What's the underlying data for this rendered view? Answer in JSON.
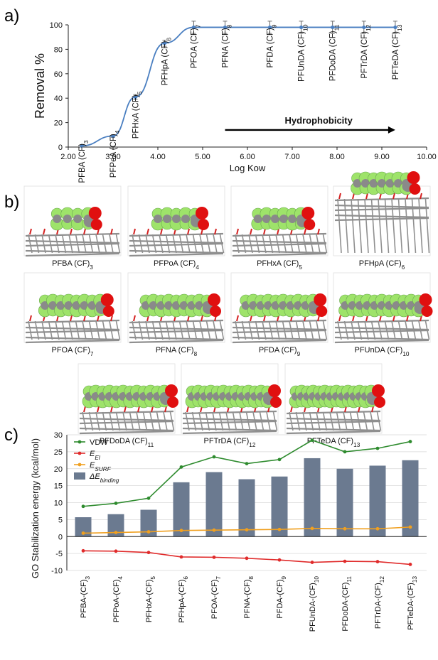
{
  "panels": {
    "a": "a)",
    "b": "b)",
    "c": "c)"
  },
  "chart_data": [
    {
      "type": "line",
      "xlabel": "Log Kow",
      "ylabel": "Removal %",
      "xlim": [
        2.0,
        10.0
      ],
      "ylim": [
        0,
        100
      ],
      "xticks": [
        "2.00",
        "3.00",
        "4.00",
        "5.00",
        "6.00",
        "7.00",
        "8.00",
        "9.00",
        "10.00"
      ],
      "yticks": [
        "0",
        "20",
        "40",
        "60",
        "80",
        "100"
      ],
      "series": [
        {
          "color": "#4a7fc1",
          "x": [
            2.3,
            3.0,
            3.5,
            4.15,
            4.8,
            5.5,
            6.5,
            7.2,
            7.9,
            8.6,
            9.3
          ],
          "y": [
            1,
            9,
            41,
            85,
            98,
            98,
            98,
            98,
            98,
            98,
            98
          ],
          "yerr": [
            0.8,
            1.0,
            2.0,
            2.5,
            5,
            5,
            5,
            5,
            5,
            5,
            5
          ]
        }
      ],
      "point_labels": [
        {
          "base": "PFBA (CF)",
          "sub": "3",
          "x": 2.3,
          "y": 1
        },
        {
          "base": "PFPeA (CF)",
          "sub": "4",
          "x": 3.0,
          "y": 9
        },
        {
          "base": "PFHxA (CF)",
          "sub": "5",
          "x": 3.5,
          "y": 41
        },
        {
          "base": "PFHpA (CF)",
          "sub": "6",
          "x": 4.15,
          "y": 85
        },
        {
          "base": "PFOA (CF)",
          "sub": "7",
          "x": 4.8,
          "y": 98
        },
        {
          "base": "PFNA (CF)",
          "sub": "8",
          "x": 5.5,
          "y": 98
        },
        {
          "base": "PFDA (CF)",
          "sub": "9",
          "x": 6.5,
          "y": 98
        },
        {
          "base": "PFUnDA (CF)",
          "sub": "10",
          "x": 7.2,
          "y": 98
        },
        {
          "base": "PFDoDA (CF)",
          "sub": "11",
          "x": 7.9,
          "y": 98
        },
        {
          "base": "PFTrDA (CF)",
          "sub": "12",
          "x": 8.6,
          "y": 98
        },
        {
          "base": "PFTeDA (CF)",
          "sub": "13",
          "x": 9.3,
          "y": 98
        }
      ],
      "annotation": {
        "text": "Hydrophobicity",
        "arrow_from_x": 5.5,
        "arrow_to_x": 9.3,
        "y": 14
      }
    },
    {
      "type": "bar",
      "ylabel": "GO Stabilization energy (kcal/mol)",
      "ylim": [
        -10,
        30
      ],
      "yticks": [
        "-10",
        "-5",
        "0",
        "5",
        "10",
        "15",
        "20",
        "25",
        "30"
      ],
      "categories": [
        {
          "base": "PFBA-(CF)",
          "sub": "3"
        },
        {
          "base": "PFPoA-(CF)",
          "sub": "4"
        },
        {
          "base": "PFHxA-(CF)",
          "sub": "5"
        },
        {
          "base": "PFHpA-(CF)",
          "sub": "6"
        },
        {
          "base": "PFOA-(CF)",
          "sub": "7"
        },
        {
          "base": "PFNA-(CF)",
          "sub": "8"
        },
        {
          "base": "PFDA-(CF)",
          "sub": "9"
        },
        {
          "base": "PFUnDA-(CF)",
          "sub": "10"
        },
        {
          "base": "PFDoDA-(CF)",
          "sub": "11"
        },
        {
          "base": "PFTrDA-(CF)",
          "sub": "12"
        },
        {
          "base": "PFTeDA-(CF)",
          "sub": "13"
        }
      ],
      "series": [
        {
          "name": "VDW",
          "kind": "line",
          "color": "#2e8b2e",
          "values": [
            8.9,
            9.8,
            11.3,
            20.5,
            23.5,
            21.5,
            22.7,
            28.4,
            25.0,
            26.0,
            28.0
          ]
        },
        {
          "name": "E",
          "name_sub": "El",
          "kind": "line",
          "color": "#e02b2b",
          "values": [
            -4.2,
            -4.3,
            -4.7,
            -6.0,
            -6.1,
            -6.4,
            -6.9,
            -7.6,
            -7.3,
            -7.4,
            -8.2
          ]
        },
        {
          "name": "E",
          "name_sub": "SURF",
          "kind": "line",
          "color": "#f0a020",
          "values": [
            1.0,
            1.2,
            1.4,
            1.8,
            1.9,
            2.0,
            2.1,
            2.4,
            2.3,
            2.3,
            2.8
          ]
        },
        {
          "name": "ΔE",
          "name_sub": "binding",
          "kind": "bar",
          "color": "#6b7a90",
          "values": [
            5.7,
            6.6,
            7.9,
            16.0,
            19.0,
            16.9,
            17.7,
            23.1,
            20.0,
            20.9,
            22.5
          ]
        }
      ],
      "legend": "top-left",
      "grid": true
    }
  ],
  "molecules": [
    {
      "base": "PFBA (CF)",
      "sub": "3",
      "chain": 3
    },
    {
      "base": "PFPoA (CF)",
      "sub": "4",
      "chain": 4
    },
    {
      "base": "PFHxA (CF)",
      "sub": "5",
      "chain": 5
    },
    {
      "base": "PFHpA (CF)",
      "sub": "6",
      "chain": 6
    },
    {
      "base": "PFOA (CF)",
      "sub": "7",
      "chain": 7
    },
    {
      "base": "PFNA (CF)",
      "sub": "8",
      "chain": 8
    },
    {
      "base": "PFDA (CF)",
      "sub": "9",
      "chain": 9
    },
    {
      "base": "PFUnDA (CF)",
      "sub": "10",
      "chain": 10
    },
    {
      "base": "PFDoDA (CF)",
      "sub": "11",
      "chain": 11
    },
    {
      "base": "PFTrDA (CF)",
      "sub": "12",
      "chain": 12
    },
    {
      "base": "PFTeDA (CF)",
      "sub": "13",
      "chain": 13
    }
  ],
  "colors": {
    "fluorine": "#9ee36a",
    "carbon": "#8a8a8a",
    "oxygen": "#e01010",
    "graphene": "#8f8f8f",
    "graphene_oxygen": "#d42020"
  }
}
